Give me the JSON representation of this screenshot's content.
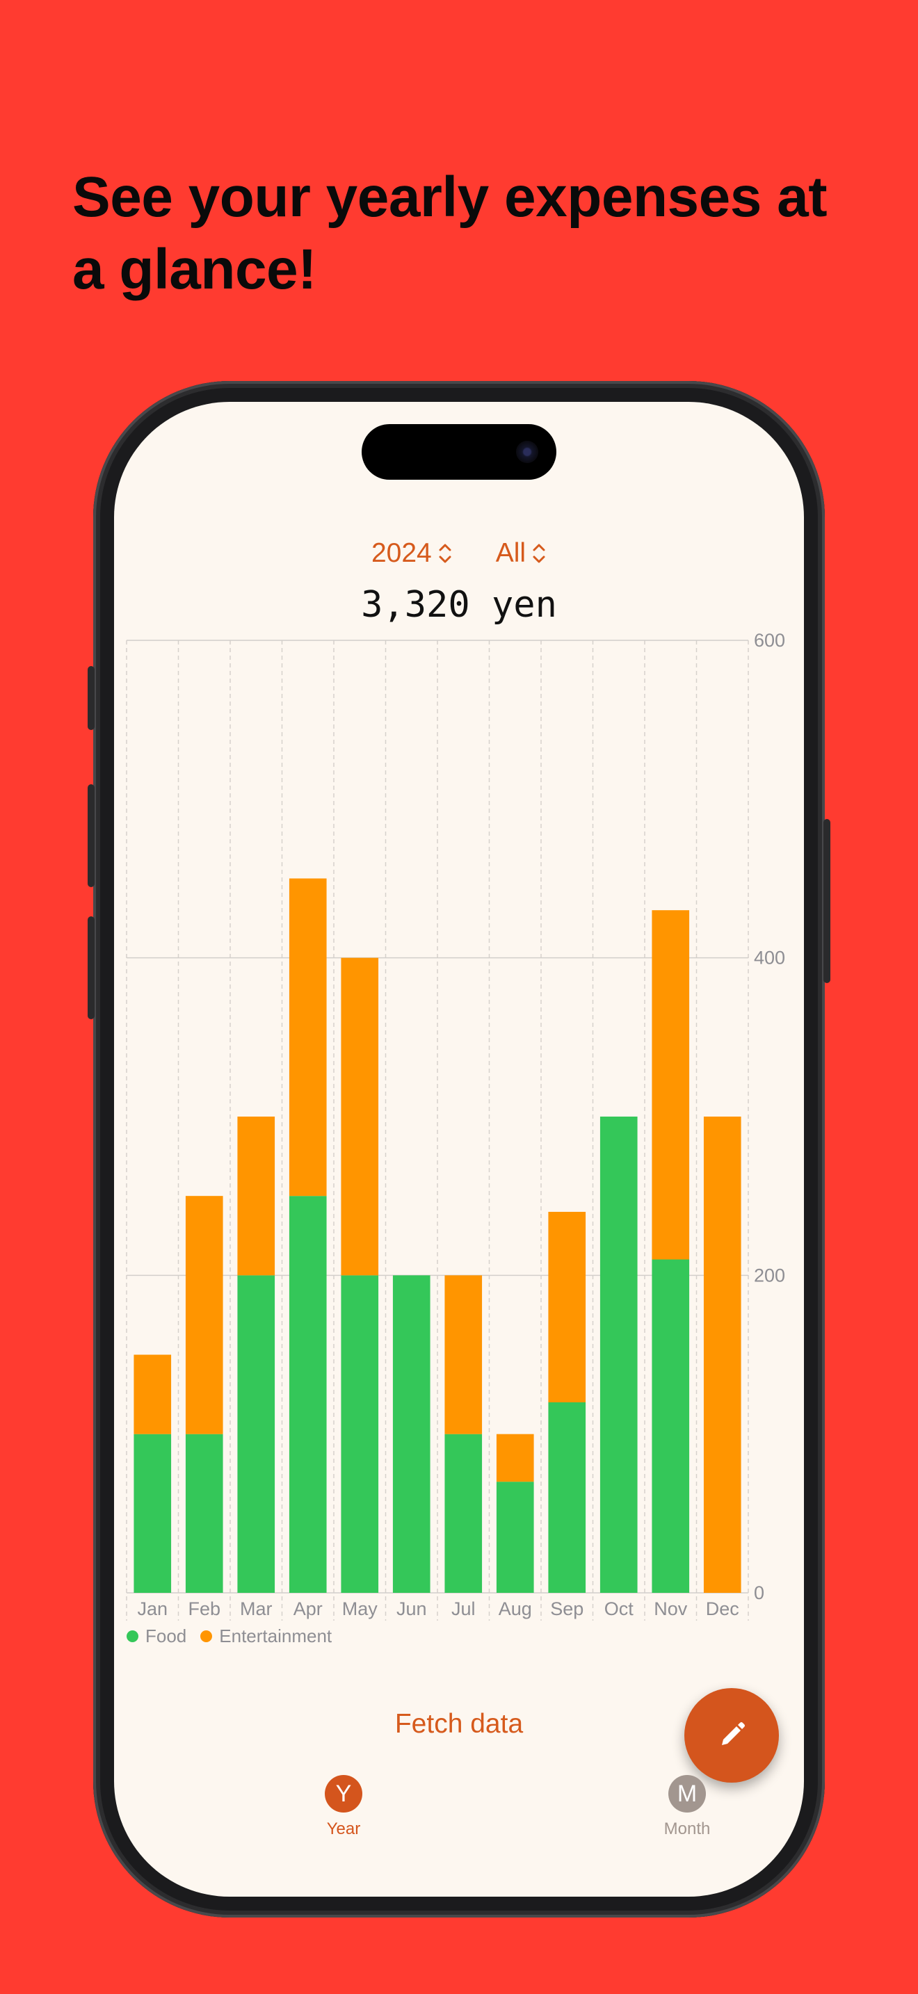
{
  "promo": {
    "headline": "See your yearly expenses at a glance!"
  },
  "header": {
    "year_selector": "2024",
    "category_selector": "All"
  },
  "summary": {
    "total": "3,320 yen"
  },
  "colors": {
    "food": "#34c759",
    "entertainment": "#ff9500",
    "accent": "#d65a1c",
    "year_tab": "#d4551d",
    "month_tab": "#a2968f"
  },
  "chart_data": {
    "type": "bar",
    "stacked": true,
    "categories": [
      "Jan",
      "Feb",
      "Mar",
      "Apr",
      "May",
      "Jun",
      "Jul",
      "Aug",
      "Sep",
      "Oct",
      "Nov",
      "Dec"
    ],
    "series": [
      {
        "name": "Food",
        "values": [
          100,
          100,
          200,
          250,
          200,
          200,
          100,
          70,
          120,
          300,
          210,
          0
        ]
      },
      {
        "name": "Entertainment",
        "values": [
          50,
          150,
          100,
          200,
          200,
          0,
          100,
          30,
          120,
          0,
          220,
          300
        ]
      }
    ],
    "y_ticks": [
      "0",
      "200",
      "400",
      "600"
    ],
    "ylim": [
      0,
      600
    ],
    "grid": true,
    "legend_position": "bottom-left"
  },
  "legend": {
    "food_label": "Food",
    "entertainment_label": "Entertainment"
  },
  "actions": {
    "fetch_label": "Fetch data",
    "fab_icon": "pencil-icon"
  },
  "tabs": [
    {
      "badge": "Y",
      "label": "Year",
      "active": true
    },
    {
      "badge": "M",
      "label": "Month",
      "active": false
    }
  ]
}
